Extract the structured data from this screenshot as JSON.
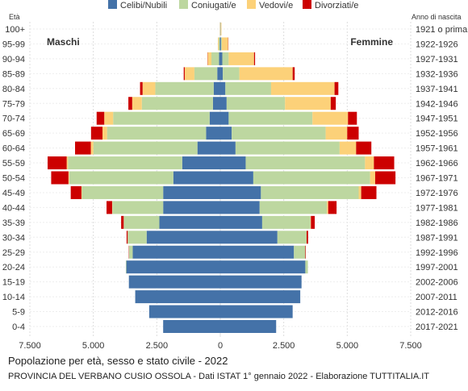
{
  "chart_data": {
    "type": "bar",
    "orientation": "horizontal-population-pyramid",
    "title": "Popolazione per età, sesso e stato civile - 2022",
    "subtitle": "PROVINCIA DEL VERBANO CUSIO OSSOLA - Dati ISTAT 1° gennaio 2022 - Elaborazione TUTTITALIA.IT",
    "y_left_header": "Età",
    "y_right_header": "Anno di nascita",
    "left_group_label": "Maschi",
    "right_group_label": "Femmine",
    "x_tick_labels": [
      "7.500",
      "5.000",
      "2.500",
      "0",
      "2.500",
      "5.000",
      "7.500"
    ],
    "xlim": [
      -7500,
      7500
    ],
    "grid": true,
    "legend_position": "top",
    "series": [
      {
        "name": "Celibi/Nubili",
        "color": "#4472a8"
      },
      {
        "name": "Coniugati/e",
        "color": "#bdd7a0"
      },
      {
        "name": "Vedovi/e",
        "color": "#fcd179"
      },
      {
        "name": "Divorziati/e",
        "color": "#cc0000"
      }
    ],
    "age_groups": [
      "100+",
      "95-99",
      "90-94",
      "85-89",
      "80-84",
      "75-79",
      "70-74",
      "65-69",
      "60-64",
      "55-59",
      "50-54",
      "45-49",
      "40-44",
      "35-39",
      "30-34",
      "25-29",
      "20-24",
      "15-19",
      "10-14",
      "5-9",
      "0-4"
    ],
    "birth_years": [
      "1921 o prima",
      "1922-1926",
      "1927-1931",
      "1932-1936",
      "1937-1941",
      "1942-1946",
      "1947-1951",
      "1952-1956",
      "1957-1961",
      "1962-1966",
      "1967-1971",
      "1972-1976",
      "1977-1981",
      "1982-1986",
      "1987-1991",
      "1992-1996",
      "1997-2001",
      "2002-2006",
      "2007-2011",
      "2012-2016",
      "2017-2021"
    ],
    "males": {
      "celibi": [
        5,
        15,
        50,
        120,
        260,
        290,
        420,
        560,
        900,
        1500,
        1850,
        2250,
        2250,
        2400,
        2900,
        3450,
        3700,
        3600,
        3350,
        2800,
        2250
      ],
      "coniugati": [
        5,
        50,
        300,
        900,
        2300,
        2800,
        3800,
        3900,
        4100,
        4500,
        4100,
        3200,
        2000,
        1400,
        750,
        150,
        20,
        0,
        0,
        0,
        0
      ],
      "vedovi": [
        10,
        30,
        150,
        380,
        500,
        380,
        350,
        180,
        100,
        50,
        30,
        20,
        10,
        5,
        0,
        0,
        0,
        0,
        0,
        0,
        0
      ],
      "divorziati": [
        0,
        0,
        10,
        40,
        100,
        150,
        300,
        450,
        620,
        750,
        680,
        420,
        220,
        100,
        40,
        10,
        0,
        0,
        0,
        0,
        0
      ]
    },
    "females": {
      "nubili": [
        10,
        30,
        80,
        100,
        200,
        250,
        330,
        450,
        600,
        1000,
        1300,
        1600,
        1550,
        1650,
        2250,
        2900,
        3350,
        3200,
        3150,
        2850,
        2200
      ],
      "coniugate": [
        5,
        30,
        250,
        650,
        1800,
        2300,
        3300,
        3700,
        4100,
        4700,
        4600,
        3850,
        2650,
        1900,
        1150,
        450,
        100,
        0,
        0,
        0,
        0
      ],
      "vedove": [
        30,
        250,
        1000,
        2100,
        2500,
        1800,
        1400,
        850,
        650,
        350,
        200,
        100,
        50,
        20,
        0,
        0,
        0,
        0,
        0,
        0,
        0
      ],
      "divorziate": [
        0,
        10,
        40,
        80,
        150,
        200,
        350,
        450,
        600,
        800,
        800,
        600,
        330,
        150,
        60,
        20,
        0,
        0,
        0,
        0,
        0
      ]
    }
  }
}
